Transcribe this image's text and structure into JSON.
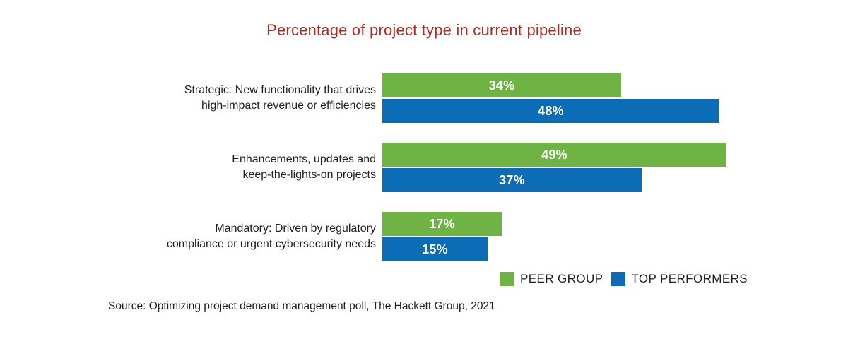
{
  "title": "Percentage of project type in current pipeline",
  "source": "Source: Optimizing project demand management poll, The Hackett Group, 2021",
  "colors": {
    "title_red": "#b12a28",
    "peer_green": "#6fb344",
    "top_blue": "#0c6cb6",
    "label_text": "#231f20",
    "value_text": "#ffffff",
    "background": "#ffffff"
  },
  "legend": {
    "items": [
      {
        "label": "PEER GROUP",
        "color": "#6fb344"
      },
      {
        "label": "TOP PERFORMERS",
        "color": "#0c6cb6"
      }
    ]
  },
  "chart_data": {
    "type": "bar",
    "orientation": "horizontal",
    "title": "Percentage of project type in current pipeline",
    "unit": "percent",
    "xlim": [
      0,
      50
    ],
    "axes_visible": false,
    "grid": false,
    "legend_position": "bottom-right",
    "categories": [
      "Strategic: New functionality that drives high-impact revenue or efficiencies",
      "Enhancements, updates and keep-the-lights-on projects",
      "Mandatory: Driven by regulatory compliance or urgent cybersecurity needs"
    ],
    "categories_lines": [
      [
        "Strategic: New functionality that drives",
        "high-impact revenue or efficiencies"
      ],
      [
        "Enhancements, updates and",
        "keep-the-lights-on projects"
      ],
      [
        "Mandatory: Driven by regulatory",
        "compliance or urgent cybersecurity needs"
      ]
    ],
    "series": [
      {
        "name": "PEER GROUP",
        "color": "#6fb344",
        "values": [
          34,
          49,
          17
        ],
        "labels": [
          "34%",
          "49%",
          "17%"
        ]
      },
      {
        "name": "TOP PERFORMERS",
        "color": "#0c6cb6",
        "values": [
          48,
          37,
          15
        ],
        "labels": [
          "48%",
          "37%",
          "15%"
        ]
      }
    ]
  }
}
